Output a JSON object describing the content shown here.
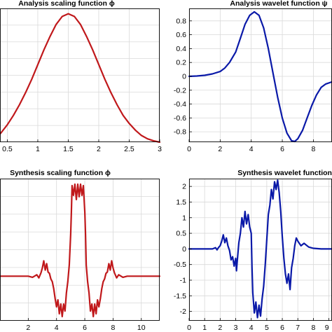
{
  "chart_data": [
    {
      "id": "p1",
      "type": "line",
      "title": "Analysis scaling function ϕ",
      "xlabel": "",
      "ylabel": "",
      "xlim": [
        0.38,
        3.0
      ],
      "ylim": [
        0.0,
        1.0
      ],
      "x_ticks": [
        "0.5",
        "1",
        "1.5",
        "2",
        "2.5",
        "3"
      ],
      "x_tick_values": [
        0.5,
        1,
        1.5,
        2,
        2.5,
        3
      ],
      "y_ticks": [],
      "y_tick_values": [],
      "grid": true,
      "series": [
        {
          "color": "#c0181b",
          "x": [
            0.38,
            0.5,
            0.6,
            0.7,
            0.8,
            0.9,
            1.0,
            1.1,
            1.2,
            1.3,
            1.4,
            1.5,
            1.6,
            1.7,
            1.8,
            1.9,
            2.0,
            2.1,
            2.2,
            2.3,
            2.4,
            2.5,
            2.6,
            2.7,
            2.8,
            2.9,
            3.0
          ],
          "y": [
            0.06,
            0.13,
            0.2,
            0.28,
            0.37,
            0.47,
            0.58,
            0.69,
            0.79,
            0.88,
            0.94,
            0.96,
            0.94,
            0.88,
            0.79,
            0.69,
            0.58,
            0.47,
            0.37,
            0.28,
            0.2,
            0.14,
            0.09,
            0.05,
            0.025,
            0.01,
            0.0
          ]
        }
      ]
    },
    {
      "id": "p2",
      "type": "line",
      "title": "Analysis wavelet function ψ",
      "xlabel": "",
      "ylabel": "",
      "xlim": [
        0,
        9.2
      ],
      "ylim": [
        -0.95,
        0.98
      ],
      "x_ticks": [
        "0",
        "2",
        "4",
        "6",
        "8"
      ],
      "x_tick_values": [
        0,
        2,
        4,
        6,
        8
      ],
      "y_ticks": [
        "0.8",
        "0.6",
        "0.4",
        "0.2",
        "0",
        "-0.2",
        "-0.4",
        "-0.6",
        "-0.8"
      ],
      "y_tick_values": [
        0.8,
        0.6,
        0.4,
        0.2,
        0,
        -0.2,
        -0.4,
        -0.6,
        -0.8
      ],
      "grid": true,
      "series": [
        {
          "color": "#0a19a8",
          "x": [
            0,
            0.5,
            1.0,
            1.5,
            2.0,
            2.3,
            2.6,
            3.0,
            3.3,
            3.6,
            3.9,
            4.2,
            4.5,
            4.8,
            5.1,
            5.4,
            5.7,
            6.0,
            6.3,
            6.6,
            6.8,
            7.0,
            7.3,
            7.6,
            7.9,
            8.2,
            8.5,
            8.8,
            9.2
          ],
          "y": [
            0.0,
            0.005,
            0.015,
            0.035,
            0.07,
            0.12,
            0.2,
            0.35,
            0.55,
            0.75,
            0.88,
            0.93,
            0.88,
            0.7,
            0.4,
            0.05,
            -0.3,
            -0.6,
            -0.82,
            -0.93,
            -0.94,
            -0.9,
            -0.78,
            -0.6,
            -0.42,
            -0.27,
            -0.16,
            -0.11,
            -0.08
          ]
        }
      ]
    },
    {
      "id": "p3",
      "type": "line",
      "title": "Synthesis scaling function ϕ",
      "xlabel": "",
      "ylabel": "",
      "xlim": [
        0,
        11.3
      ],
      "ylim": [
        -1.6,
        3.5
      ],
      "x_ticks": [
        "2",
        "4",
        "6",
        "8",
        "10"
      ],
      "x_tick_values": [
        2,
        4,
        6,
        8,
        10
      ],
      "y_ticks": [],
      "y_tick_values": [],
      "grid": true,
      "series": [
        {
          "color": "#c0181b",
          "x": [
            0,
            2.0,
            2.3,
            2.6,
            2.75,
            2.9,
            3.0,
            3.1,
            3.2,
            3.3,
            3.4,
            3.5,
            3.6,
            3.7,
            3.8,
            3.9,
            4.0,
            4.1,
            4.2,
            4.3,
            4.4,
            4.5,
            4.6,
            4.7,
            4.8,
            4.9,
            5.0,
            5.05,
            5.1,
            5.2,
            5.3,
            5.4,
            5.5,
            5.6,
            5.7,
            5.8,
            5.9,
            6.0,
            6.05,
            6.1,
            6.2,
            6.3,
            6.4,
            6.5,
            6.6,
            6.7,
            6.8,
            6.9,
            7.0,
            7.1,
            7.2,
            7.3,
            7.4,
            7.5,
            7.6,
            7.7,
            7.8,
            7.9,
            8.0,
            8.1,
            8.25,
            8.4,
            8.7,
            9.0,
            11.3
          ],
          "y": [
            0.0,
            0.0,
            -0.04,
            0.05,
            -0.06,
            0.12,
            0.3,
            0.55,
            0.22,
            0.45,
            0.15,
            0.1,
            -0.1,
            -0.2,
            -0.45,
            -0.8,
            -1.1,
            -0.85,
            -1.35,
            -1.0,
            -1.45,
            -1.0,
            -1.25,
            -0.6,
            -0.2,
            0.4,
            1.5,
            2.3,
            3.25,
            2.9,
            3.3,
            2.75,
            3.3,
            2.85,
            3.3,
            2.9,
            3.25,
            2.3,
            1.5,
            0.4,
            -0.2,
            -0.6,
            -1.25,
            -1.0,
            -1.45,
            -1.0,
            -1.35,
            -0.85,
            -1.1,
            -0.8,
            -0.45,
            -0.2,
            -0.1,
            0.1,
            0.15,
            0.45,
            0.22,
            0.55,
            0.3,
            0.12,
            -0.06,
            0.05,
            -0.04,
            0.0,
            0.0
          ]
        }
      ]
    },
    {
      "id": "p4",
      "type": "line",
      "title": "Synthesis wavelet function ψ",
      "xlabel": "",
      "ylabel": "",
      "xlim": [
        0,
        9.2
      ],
      "ylim": [
        -2.3,
        2.25
      ],
      "x_ticks": [
        "0",
        "1",
        "2",
        "3",
        "4",
        "5",
        "6",
        "7",
        "8",
        "9"
      ],
      "x_tick_values": [
        0,
        1,
        2,
        3,
        4,
        5,
        6,
        7,
        8,
        9
      ],
      "y_ticks": [
        "2",
        "1.5",
        "1",
        "0.5",
        "0",
        "-0.5",
        "-1",
        "-1.5",
        "-2"
      ],
      "y_tick_values": [
        2,
        1.5,
        1,
        0.5,
        0,
        -0.5,
        -1,
        -1.5,
        -2
      ],
      "grid": true,
      "series": [
        {
          "color": "#0a19a8",
          "x": [
            0,
            1.5,
            1.7,
            1.8,
            1.9,
            2.0,
            2.1,
            2.2,
            2.3,
            2.4,
            2.5,
            2.6,
            2.7,
            2.8,
            2.9,
            3.0,
            3.05,
            3.1,
            3.2,
            3.3,
            3.4,
            3.5,
            3.6,
            3.7,
            3.8,
            3.9,
            4.0,
            4.05,
            4.1,
            4.2,
            4.3,
            4.4,
            4.5,
            4.6,
            4.7,
            4.8,
            4.9,
            5.0,
            5.1,
            5.2,
            5.3,
            5.4,
            5.5,
            5.6,
            5.7,
            5.8,
            5.9,
            6.0,
            6.1,
            6.2,
            6.3,
            6.4,
            6.5,
            6.6,
            6.7,
            6.8,
            6.9,
            7.0,
            7.2,
            7.4,
            7.7,
            8.0,
            8.5,
            9.2
          ],
          "y": [
            0.0,
            0.0,
            0.04,
            -0.03,
            0.05,
            0.1,
            0.25,
            0.45,
            0.2,
            0.35,
            0.1,
            -0.05,
            -0.35,
            -0.25,
            -0.55,
            -0.3,
            -0.7,
            -0.4,
            0.2,
            0.5,
            1.0,
            0.7,
            1.2,
            0.8,
            1.1,
            0.7,
            0.5,
            -0.6,
            -1.4,
            -2.05,
            -1.7,
            -2.2,
            -1.8,
            -2.15,
            -1.6,
            -1.2,
            -0.5,
            0.3,
            1.1,
            1.4,
            1.9,
            1.6,
            2.15,
            1.9,
            2.2,
            1.8,
            1.2,
            0.4,
            -0.3,
            -0.8,
            -1.1,
            -0.8,
            -1.3,
            -0.6,
            -0.3,
            0.1,
            0.35,
            0.25,
            0.1,
            0.18,
            0.06,
            0.02,
            0.0,
            0.0
          ]
        }
      ]
    }
  ]
}
